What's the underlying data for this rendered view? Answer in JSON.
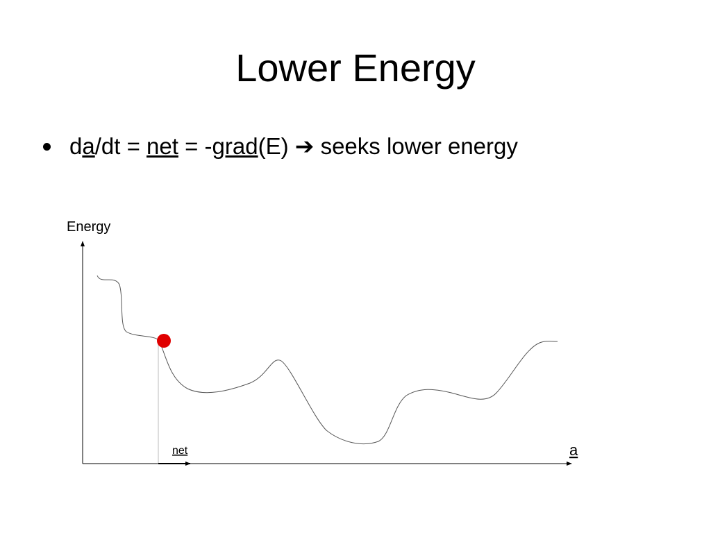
{
  "title": "Lower Energy",
  "bullet": {
    "parts": [
      {
        "text": "d"
      },
      {
        "text": "a",
        "underline": true
      },
      {
        "text": "/dt = "
      },
      {
        "text": "net",
        "underline": true
      },
      {
        "text": " = -"
      },
      {
        "text": "grad",
        "underline": true
      },
      {
        "text": "(E) "
      },
      {
        "text": "➔"
      },
      {
        "text": " seeks lower energy"
      }
    ]
  },
  "diagram": {
    "y_label": "Energy",
    "x_label": "a",
    "arrow_label": "net"
  }
}
